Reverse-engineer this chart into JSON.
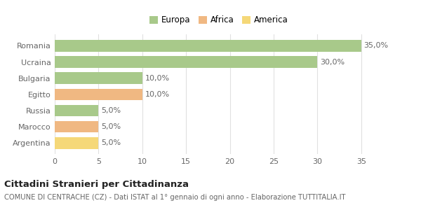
{
  "categories": [
    "Romania",
    "Ucraina",
    "Bulgaria",
    "Egitto",
    "Russia",
    "Marocco",
    "Argentina"
  ],
  "values": [
    35.0,
    30.0,
    10.0,
    10.0,
    5.0,
    5.0,
    5.0
  ],
  "colors": [
    "#a8c98a",
    "#a8c98a",
    "#a8c98a",
    "#f0b882",
    "#a8c98a",
    "#f0b882",
    "#f5d878"
  ],
  "legend_labels": [
    "Europa",
    "Africa",
    "America"
  ],
  "legend_colors": [
    "#a8c98a",
    "#f0b882",
    "#f5d878"
  ],
  "title_bold": "Cittadini Stranieri per Cittadinanza",
  "subtitle": "COMUNE DI CENTRACHE (CZ) - Dati ISTAT al 1° gennaio di ogni anno - Elaborazione TUTTITALIA.IT",
  "xlim": [
    0,
    37.5
  ],
  "xticks": [
    0,
    5,
    10,
    15,
    20,
    25,
    30,
    35
  ],
  "bar_height": 0.72,
  "bg_color": "#ffffff",
  "grid_color": "#e0e0e0",
  "label_fontsize": 8.0,
  "tick_fontsize": 8.0,
  "value_fontsize": 8.0,
  "legend_fontsize": 8.5
}
